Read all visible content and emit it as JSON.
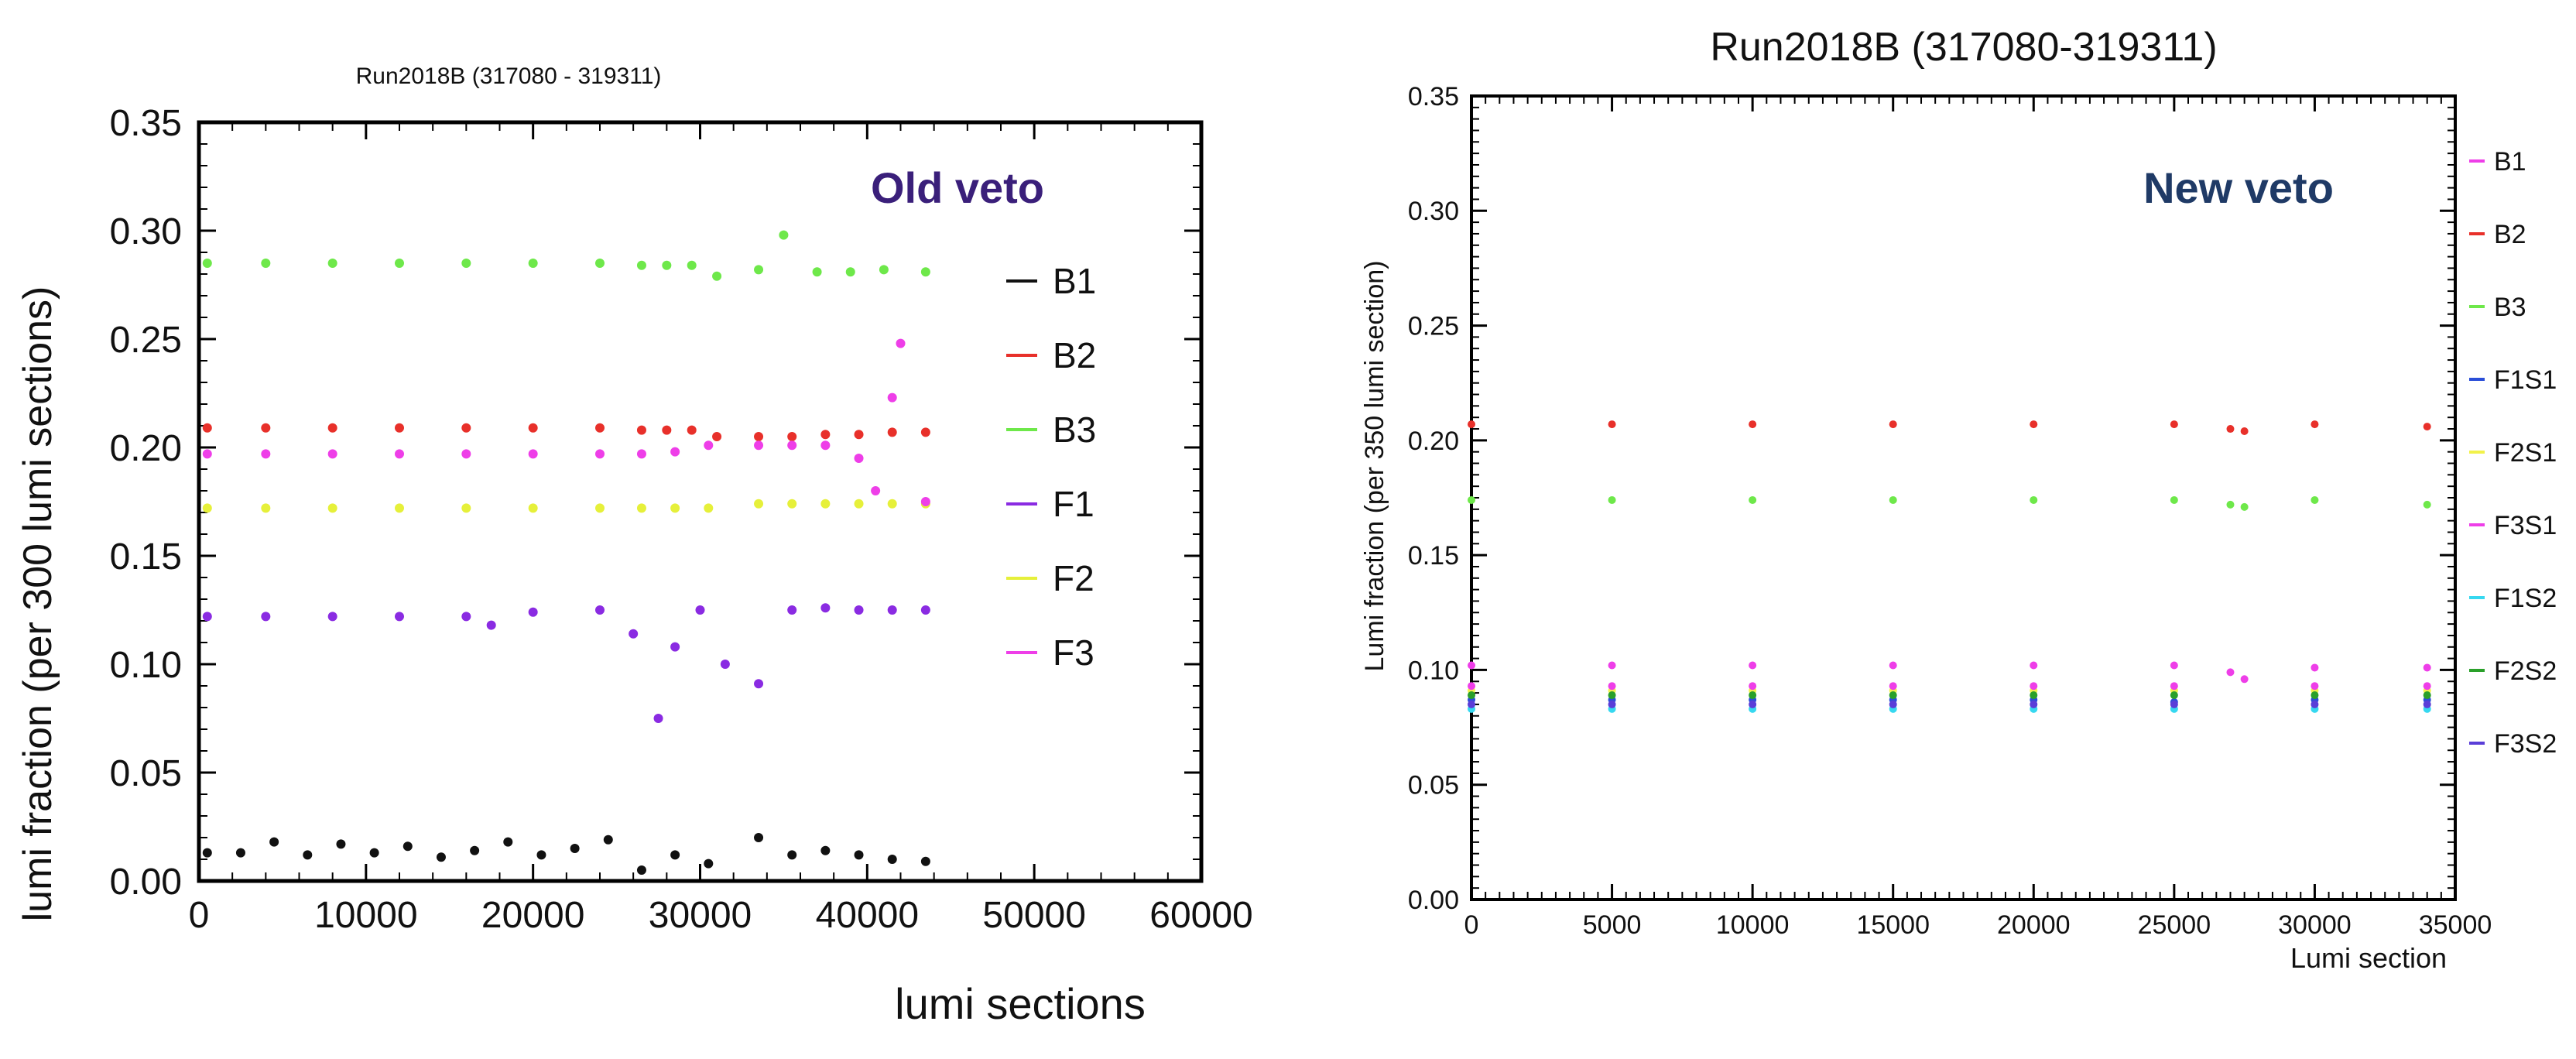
{
  "chart_data": [
    {
      "type": "scatter",
      "title": "Run2018B (317080 - 319311)",
      "annotation": "Old veto",
      "annotation_color": "#3a1f7a",
      "xlabel": "lumi sections",
      "ylabel": "lumi fraction (per 300 lumi sections)",
      "xlim": [
        0,
        60000
      ],
      "ylim": [
        0,
        0.35
      ],
      "x_ticks": [
        0,
        10000,
        20000,
        30000,
        40000,
        50000,
        60000
      ],
      "x_tick_labels": [
        "0",
        "10000",
        "20000",
        "30000",
        "40000",
        "50000",
        "60000"
      ],
      "y_ticks": [
        0,
        0.05,
        0.1,
        0.15,
        0.2,
        0.25,
        0.3,
        0.35
      ],
      "y_tick_labels": [
        "0.00",
        "0.05",
        "0.10",
        "0.15",
        "0.20",
        "0.25",
        "0.30",
        "0.35"
      ],
      "legend_position": "right",
      "series": [
        {
          "name": "B1",
          "color": "#111111",
          "x": [
            500,
            2500,
            4500,
            6500,
            8500,
            10500,
            12500,
            14500,
            16500,
            18500,
            20500,
            22500,
            24500,
            26500,
            28500,
            30500,
            33500,
            35500,
            37500,
            39500,
            41500,
            43500
          ],
          "y": [
            0.013,
            0.013,
            0.018,
            0.012,
            0.017,
            0.013,
            0.016,
            0.011,
            0.014,
            0.018,
            0.012,
            0.015,
            0.019,
            0.005,
            0.012,
            0.008,
            0.02,
            0.012,
            0.014,
            0.012,
            0.01,
            0.009
          ]
        },
        {
          "name": "B2",
          "color": "#e8302a",
          "x": [
            500,
            4000,
            8000,
            12000,
            16000,
            20000,
            24000,
            26500,
            28000,
            29500,
            31000,
            33500,
            35500,
            37500,
            39500,
            41500,
            43500
          ],
          "y": [
            0.209,
            0.209,
            0.209,
            0.209,
            0.209,
            0.209,
            0.209,
            0.208,
            0.208,
            0.208,
            0.205,
            0.205,
            0.205,
            0.206,
            0.206,
            0.207,
            0.207
          ]
        },
        {
          "name": "B3",
          "color": "#6ee84a",
          "x": [
            500,
            4000,
            8000,
            12000,
            16000,
            20000,
            24000,
            26500,
            28000,
            29500,
            31000,
            33500,
            35000,
            37000,
            39000,
            41000,
            43500
          ],
          "y": [
            0.285,
            0.285,
            0.285,
            0.285,
            0.285,
            0.285,
            0.285,
            0.284,
            0.284,
            0.284,
            0.279,
            0.282,
            0.298,
            0.281,
            0.281,
            0.282,
            0.281
          ]
        },
        {
          "name": "F1",
          "color": "#8a2be2",
          "x": [
            500,
            4000,
            8000,
            12000,
            16000,
            17500,
            20000,
            24000,
            26000,
            27500,
            28500,
            30000,
            31500,
            33500,
            35500,
            37500,
            39500,
            41500,
            43500
          ],
          "y": [
            0.122,
            0.122,
            0.122,
            0.122,
            0.122,
            0.118,
            0.124,
            0.125,
            0.114,
            0.075,
            0.108,
            0.125,
            0.1,
            0.091,
            0.125,
            0.126,
            0.125,
            0.125,
            0.125
          ]
        },
        {
          "name": "F2",
          "color": "#e6f03a",
          "x": [
            500,
            4000,
            8000,
            12000,
            16000,
            20000,
            24000,
            26500,
            28500,
            30500,
            33500,
            35500,
            37500,
            39500,
            41500,
            43500
          ],
          "y": [
            0.172,
            0.172,
            0.172,
            0.172,
            0.172,
            0.172,
            0.172,
            0.172,
            0.172,
            0.172,
            0.174,
            0.174,
            0.174,
            0.174,
            0.174,
            0.174
          ]
        },
        {
          "name": "F3",
          "color": "#ee3ee8",
          "x": [
            500,
            4000,
            8000,
            12000,
            16000,
            20000,
            24000,
            26500,
            28500,
            30500,
            33500,
            35500,
            37500,
            39500,
            40500,
            41500,
            42000,
            43500
          ],
          "y": [
            0.197,
            0.197,
            0.197,
            0.197,
            0.197,
            0.197,
            0.197,
            0.197,
            0.198,
            0.201,
            0.201,
            0.201,
            0.201,
            0.195,
            0.18,
            0.223,
            0.248,
            0.175
          ]
        }
      ]
    },
    {
      "type": "scatter",
      "title": "Run2018B (317080-319311)",
      "annotation": "New veto",
      "annotation_color": "#1f3a66",
      "xlabel": "Lumi section",
      "ylabel": "Lumi fraction (per 350 lumi section)",
      "xlim": [
        0,
        35000
      ],
      "ylim": [
        0,
        0.35
      ],
      "x_ticks": [
        0,
        5000,
        10000,
        15000,
        20000,
        25000,
        30000,
        35000
      ],
      "x_tick_labels": [
        "0",
        "5000",
        "10000",
        "15000",
        "20000",
        "25000",
        "30000",
        "35000"
      ],
      "y_ticks": [
        0,
        0.05,
        0.1,
        0.15,
        0.2,
        0.25,
        0.3,
        0.35
      ],
      "y_tick_labels": [
        "0.00",
        "0.05",
        "0.10",
        "0.15",
        "0.20",
        "0.25",
        "0.30",
        "0.35"
      ],
      "legend_position": "right",
      "series": [
        {
          "name": "B1",
          "color": "#ee3ee8",
          "x": [
            0,
            5000,
            10000,
            15000,
            20000,
            25000,
            27000,
            27500,
            30000,
            34000
          ],
          "y": [
            0.102,
            0.102,
            0.102,
            0.102,
            0.102,
            0.102,
            0.099,
            0.096,
            0.101,
            0.101
          ]
        },
        {
          "name": "B2",
          "color": "#e8302a",
          "x": [
            0,
            5000,
            10000,
            15000,
            20000,
            25000,
            27000,
            27500,
            30000,
            34000
          ],
          "y": [
            0.207,
            0.207,
            0.207,
            0.207,
            0.207,
            0.207,
            0.205,
            0.204,
            0.207,
            0.206
          ]
        },
        {
          "name": "B3",
          "color": "#6ee84a",
          "x": [
            0,
            5000,
            10000,
            15000,
            20000,
            25000,
            27000,
            27500,
            30000,
            34000
          ],
          "y": [
            0.174,
            0.174,
            0.174,
            0.174,
            0.174,
            0.174,
            0.172,
            0.171,
            0.174,
            0.172
          ]
        },
        {
          "name": "F1S1",
          "color": "#2a4ed8",
          "x": [
            0,
            5000,
            10000,
            15000,
            20000,
            25000,
            30000,
            34000
          ],
          "y": [
            0.087,
            0.087,
            0.087,
            0.087,
            0.087,
            0.086,
            0.087,
            0.087
          ]
        },
        {
          "name": "F2S1",
          "color": "#f2f24a",
          "x": [
            0,
            5000,
            10000,
            15000,
            20000,
            25000,
            30000,
            34000
          ],
          "y": [
            0.091,
            0.091,
            0.091,
            0.091,
            0.091,
            0.091,
            0.091,
            0.091
          ]
        },
        {
          "name": "F3S1",
          "color": "#ee3ee8",
          "x": [
            0,
            5000,
            10000,
            15000,
            20000,
            25000,
            30000,
            34000
          ],
          "y": [
            0.093,
            0.093,
            0.093,
            0.093,
            0.093,
            0.093,
            0.093,
            0.093
          ]
        },
        {
          "name": "F1S2",
          "color": "#36d8f0",
          "x": [
            0,
            5000,
            10000,
            15000,
            20000,
            25000,
            30000,
            34000
          ],
          "y": [
            0.083,
            0.083,
            0.083,
            0.083,
            0.083,
            0.083,
            0.083,
            0.083
          ]
        },
        {
          "name": "F2S2",
          "color": "#2aa02a",
          "x": [
            0,
            5000,
            10000,
            15000,
            20000,
            25000,
            30000,
            34000
          ],
          "y": [
            0.089,
            0.089,
            0.089,
            0.089,
            0.089,
            0.089,
            0.089,
            0.089
          ]
        },
        {
          "name": "F3S2",
          "color": "#5a3ed8",
          "x": [
            0,
            5000,
            10000,
            15000,
            20000,
            25000,
            30000,
            34000
          ],
          "y": [
            0.085,
            0.085,
            0.085,
            0.085,
            0.085,
            0.085,
            0.085,
            0.085
          ]
        }
      ]
    }
  ]
}
